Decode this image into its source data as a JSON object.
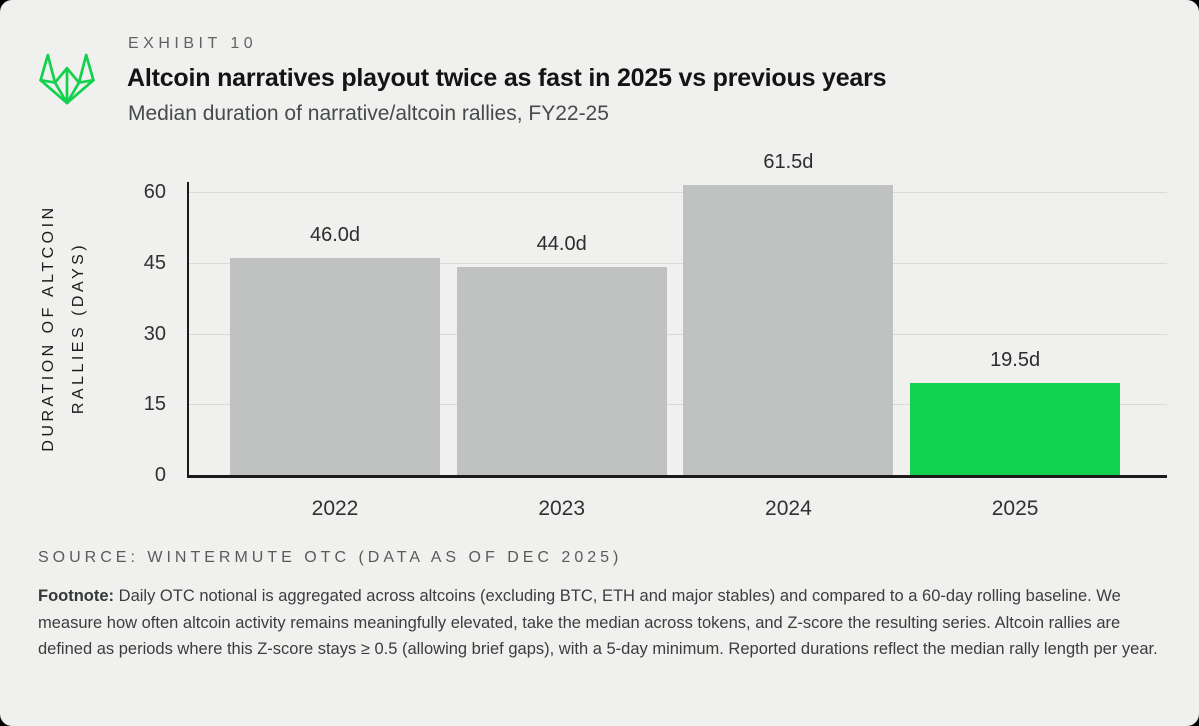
{
  "brand": {
    "logo_icon": "wintermute-logo-icon",
    "green": "#12D14D"
  },
  "header": {
    "exhibit_label": "EXHIBIT 10",
    "title": "Altcoin narratives playout twice as fast in 2025 vs previous years",
    "subtitle": "Median duration of narrative/altcoin rallies, FY22-25"
  },
  "chart_data": {
    "type": "bar",
    "title": "Median duration of narrative/altcoin rallies, FY22-25",
    "categories": [
      "2022",
      "2023",
      "2024",
      "2025"
    ],
    "values": [
      46.0,
      44.0,
      61.5,
      19.5
    ],
    "value_labels": [
      "46.0d",
      "44.0d",
      "61.5d",
      "19.5d"
    ],
    "bar_colors": [
      "#C0C2C1",
      "#C0C2C1",
      "#C0C2C1",
      "#12D14D"
    ],
    "highlight_index": 3,
    "ylabel_line1": "DURATION OF ALTCOIN",
    "ylabel_line2": "RALLIES (DAYS)",
    "yticks": [
      0,
      15,
      30,
      45,
      60
    ],
    "ylim": [
      0,
      65
    ],
    "xlabel": "",
    "ylabel": "DURATION OF ALTCOIN RALLIES (DAYS)",
    "grid": "horizontal",
    "legend": "none"
  },
  "source": "SOURCE: WINTERMUTE OTC (DATA AS OF DEC 2025)",
  "footnote": {
    "label": "Footnote:",
    "text": " Daily OTC notional is aggregated across altcoins (excluding BTC, ETH and major stables) and compared to a 60-day rolling baseline. We measure how often altcoin activity remains meaningfully elevated, take the median across tokens, and Z-score the resulting series. Altcoin rallies are defined as periods where this Z-score stays ≥ 0.5 (allowing brief gaps), with a 5-day minimum. Reported durations reflect the median rally length per year."
  }
}
